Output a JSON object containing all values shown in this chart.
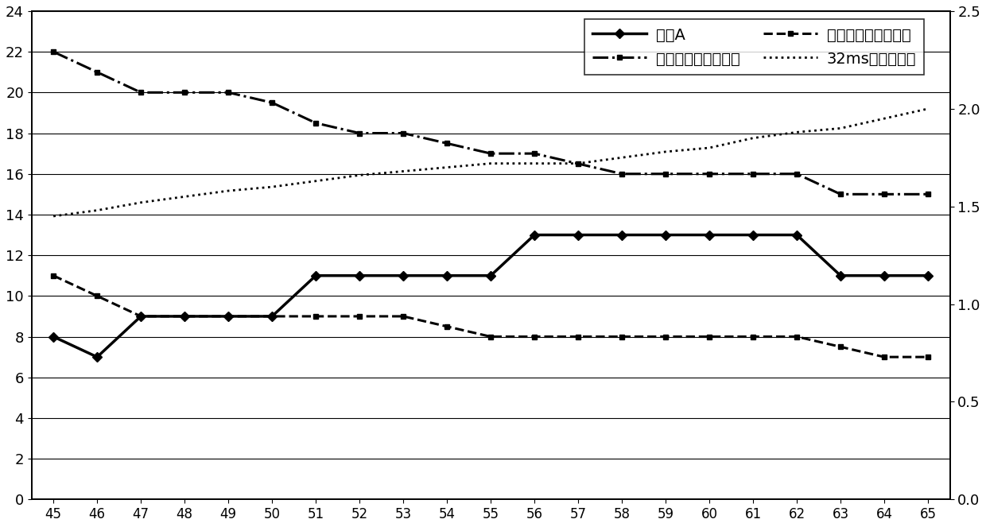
{
  "x": [
    45,
    46,
    47,
    48,
    49,
    50,
    51,
    52,
    53,
    54,
    55,
    56,
    57,
    58,
    59,
    60,
    61,
    62,
    63,
    64,
    65
  ],
  "threshold_A": [
    8,
    7,
    9,
    9,
    9,
    9,
    11,
    11,
    11,
    11,
    11,
    13,
    13,
    13,
    13,
    13,
    13,
    13,
    11,
    11,
    11
  ],
  "samples_per_period": [
    22,
    21,
    20,
    20,
    20,
    19.5,
    18.5,
    18,
    18,
    17.5,
    17,
    17,
    16.5,
    16,
    16,
    16,
    16,
    16,
    15,
    15,
    15
  ],
  "samples_per_half_period": [
    11,
    10,
    9,
    9,
    9,
    9,
    9,
    9,
    9,
    8.5,
    8,
    8,
    8,
    8,
    8,
    8,
    8,
    8,
    7.5,
    7,
    7
  ],
  "periods_in_32ms": [
    1.45,
    1.48,
    1.52,
    1.55,
    1.58,
    1.6,
    1.63,
    1.66,
    1.68,
    1.7,
    1.72,
    1.72,
    1.72,
    1.75,
    1.78,
    1.8,
    1.85,
    1.88,
    1.9,
    1.95,
    2.0
  ],
  "legend_labels": [
    "阈値A",
    "一个周期内的采样数",
    "半个周期内的采样数",
    "32ms内周期个数"
  ],
  "ylim_left": [
    0,
    24
  ],
  "ylim_right": [
    0,
    2.5
  ],
  "yticks_left": [
    0,
    2,
    4,
    6,
    8,
    10,
    12,
    14,
    16,
    18,
    20,
    22,
    24
  ],
  "yticks_right": [
    0,
    0.5,
    1.0,
    1.5,
    2.0,
    2.5
  ],
  "bg_color": "#ffffff",
  "line_color": "#000000"
}
